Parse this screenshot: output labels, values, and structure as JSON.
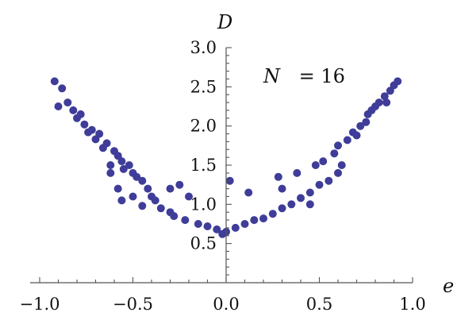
{
  "chart_data": {
    "type": "scatter",
    "title": "",
    "xlabel": "e",
    "ylabel": "D",
    "annotation": {
      "variable": "N",
      "text": "= 16"
    },
    "xlim": [
      -1.0,
      1.0
    ],
    "ylim": [
      0.0,
      3.0
    ],
    "x_ticks": [
      "−1.0",
      "−0.5",
      "0.0",
      "0.5",
      "1.0"
    ],
    "x_tick_values": [
      -1.0,
      -0.5,
      0.0,
      0.5,
      1.0
    ],
    "y_ticks": [
      "0.5",
      "1.0",
      "1.5",
      "2.0",
      "2.5",
      "3.0"
    ],
    "y_tick_values": [
      0.5,
      1.0,
      1.5,
      2.0,
      2.5,
      3.0
    ],
    "marker_color": "#3f3d99",
    "grid": false,
    "series": [
      {
        "points": [
          [
            -0.92,
            2.57
          ],
          [
            -0.88,
            2.48
          ],
          [
            -0.9,
            2.25
          ],
          [
            -0.85,
            2.3
          ],
          [
            -0.82,
            2.2
          ],
          [
            -0.8,
            2.1
          ],
          [
            -0.78,
            2.15
          ],
          [
            -0.76,
            2.02
          ],
          [
            -0.74,
            1.92
          ],
          [
            -0.72,
            1.95
          ],
          [
            -0.7,
            1.83
          ],
          [
            -0.68,
            1.9
          ],
          [
            -0.66,
            1.72
          ],
          [
            -0.64,
            1.78
          ],
          [
            -0.6,
            1.68
          ],
          [
            -0.58,
            1.62
          ],
          [
            -0.56,
            1.55
          ],
          [
            -0.55,
            1.45
          ],
          [
            -0.52,
            1.5
          ],
          [
            -0.5,
            1.4
          ],
          [
            -0.48,
            1.35
          ],
          [
            -0.5,
            1.1
          ],
          [
            -0.58,
            1.2
          ],
          [
            -0.62,
            1.4
          ],
          [
            -0.56,
            1.05
          ],
          [
            -0.45,
            1.3
          ],
          [
            -0.42,
            1.2
          ],
          [
            -0.4,
            1.1
          ],
          [
            -0.38,
            1.05
          ],
          [
            -0.35,
            0.95
          ],
          [
            -0.3,
            0.9
          ],
          [
            -0.28,
            0.85
          ],
          [
            -0.25,
            1.25
          ],
          [
            -0.22,
            0.8
          ],
          [
            -0.2,
            1.1
          ],
          [
            -0.15,
            0.75
          ],
          [
            -0.1,
            0.72
          ],
          [
            -0.05,
            0.68
          ],
          [
            -0.02,
            0.62
          ],
          [
            0.0,
            0.65
          ],
          [
            0.02,
            1.3
          ],
          [
            0.05,
            0.7
          ],
          [
            0.1,
            0.75
          ],
          [
            0.12,
            1.15
          ],
          [
            0.15,
            0.8
          ],
          [
            0.2,
            0.82
          ],
          [
            0.25,
            0.88
          ],
          [
            0.28,
            1.35
          ],
          [
            0.3,
            0.95
          ],
          [
            0.35,
            1.0
          ],
          [
            0.38,
            1.4
          ],
          [
            0.4,
            1.08
          ],
          [
            0.45,
            1.15
          ],
          [
            0.48,
            1.5
          ],
          [
            0.5,
            1.25
          ],
          [
            0.52,
            1.55
          ],
          [
            0.55,
            1.3
          ],
          [
            0.58,
            1.65
          ],
          [
            0.6,
            1.75
          ],
          [
            0.62,
            1.5
          ],
          [
            0.65,
            1.82
          ],
          [
            0.68,
            1.92
          ],
          [
            0.7,
            1.88
          ],
          [
            0.72,
            2.0
          ],
          [
            0.75,
            2.05
          ],
          [
            0.76,
            2.15
          ],
          [
            0.78,
            2.2
          ],
          [
            0.8,
            2.25
          ],
          [
            0.82,
            2.3
          ],
          [
            0.85,
            2.38
          ],
          [
            0.86,
            2.3
          ],
          [
            0.88,
            2.45
          ],
          [
            0.9,
            2.52
          ],
          [
            0.92,
            2.57
          ],
          [
            -0.62,
            1.5
          ],
          [
            0.6,
            1.4
          ],
          [
            -0.45,
            0.98
          ],
          [
            0.45,
            1.0
          ],
          [
            -0.3,
            1.2
          ],
          [
            0.3,
            1.2
          ]
        ]
      }
    ]
  }
}
